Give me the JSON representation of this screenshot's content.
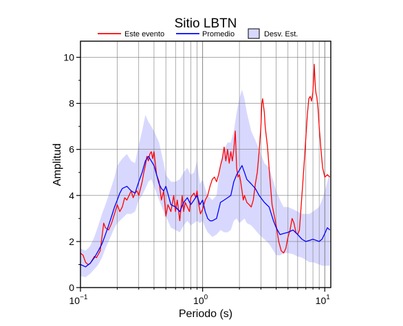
{
  "chart_data": {
    "type": "line",
    "title": "Sitio LBTN",
    "xlabel": "Periodo (s)",
    "ylabel": "Amplitud",
    "x_scale": "log",
    "xlim": [
      0.1,
      11.2
    ],
    "ylim": [
      0,
      10.7
    ],
    "grid": true,
    "legend_placement": "top",
    "x_ticks": [
      {
        "value": 0.1,
        "base": "10",
        "exp": "−1"
      },
      {
        "value": 1,
        "base": "10",
        "exp": "0"
      },
      {
        "value": 10,
        "base": "10",
        "exp": "1"
      }
    ],
    "y_ticks": [
      {
        "value": 0,
        "label": "0"
      },
      {
        "value": 2,
        "label": "2"
      },
      {
        "value": 4,
        "label": "4"
      },
      {
        "value": 6,
        "label": "6"
      },
      {
        "value": 8,
        "label": "8"
      },
      {
        "value": 10,
        "label": "10"
      }
    ],
    "legend": [
      {
        "label": "Este evento",
        "kind": "line",
        "color": "#ff0000"
      },
      {
        "label": "Promedio",
        "kind": "line",
        "color": "#0000ff"
      },
      {
        "label": "Desv. Est.",
        "kind": "box",
        "color": "#d8d8ff"
      }
    ],
    "series": [
      {
        "name": "Este evento",
        "color": "#ff0000",
        "x": [
          0.1,
          0.105,
          0.11,
          0.115,
          0.12,
          0.125,
          0.13,
          0.135,
          0.14,
          0.145,
          0.15,
          0.155,
          0.16,
          0.17,
          0.18,
          0.19,
          0.2,
          0.21,
          0.22,
          0.23,
          0.24,
          0.25,
          0.26,
          0.27,
          0.28,
          0.29,
          0.3,
          0.31,
          0.32,
          0.33,
          0.34,
          0.35,
          0.36,
          0.37,
          0.38,
          0.39,
          0.4,
          0.42,
          0.44,
          0.46,
          0.48,
          0.5,
          0.52,
          0.55,
          0.58,
          0.6,
          0.62,
          0.65,
          0.68,
          0.7,
          0.72,
          0.75,
          0.78,
          0.8,
          0.82,
          0.85,
          0.88,
          0.9,
          0.93,
          0.96,
          1.0,
          1.05,
          1.1,
          1.15,
          1.2,
          1.25,
          1.3,
          1.35,
          1.4,
          1.45,
          1.5,
          1.55,
          1.6,
          1.65,
          1.7,
          1.75,
          1.8,
          1.85,
          1.9,
          1.95,
          2.0,
          2.05,
          2.1,
          2.15,
          2.2,
          2.3,
          2.4,
          2.5,
          2.6,
          2.7,
          2.8,
          2.9,
          3.0,
          3.05,
          3.1,
          3.15,
          3.2,
          3.25,
          3.3,
          3.4,
          3.5,
          3.6,
          3.7,
          3.8,
          3.9,
          4.0,
          4.2,
          4.4,
          4.6,
          4.8,
          5.0,
          5.2,
          5.4,
          5.6,
          5.8,
          6.0,
          6.2,
          6.4,
          6.6,
          6.8,
          7.0,
          7.2,
          7.4,
          7.6,
          7.8,
          8.0,
          8.1,
          8.2,
          8.3,
          8.4,
          8.5,
          8.6,
          8.8,
          9.0,
          9.3,
          9.6,
          10.0,
          10.5,
          11.0
        ],
        "y": [
          1.5,
          1.4,
          1.1,
          1.0,
          1.05,
          1.2,
          1.35,
          1.3,
          1.45,
          1.6,
          2.2,
          2.8,
          2.6,
          2.5,
          2.8,
          3.2,
          3.6,
          3.3,
          3.5,
          3.9,
          3.8,
          4.0,
          4.2,
          3.9,
          4.1,
          4.2,
          4.0,
          4.3,
          4.6,
          5.0,
          5.3,
          5.7,
          5.5,
          5.8,
          5.9,
          5.6,
          5.9,
          4.9,
          4.6,
          3.8,
          4.2,
          3.1,
          3.6,
          3.3,
          4.0,
          3.3,
          3.8,
          2.9,
          4.0,
          3.3,
          3.7,
          3.5,
          3.3,
          3.9,
          4.0,
          4.1,
          3.9,
          4.2,
          3.6,
          3.2,
          3.4,
          3.8,
          4.0,
          4.4,
          4.7,
          4.8,
          4.6,
          4.9,
          5.3,
          5.6,
          6.1,
          5.5,
          6.0,
          5.4,
          5.9,
          5.5,
          6.0,
          6.8,
          5.2,
          4.8,
          4.9,
          4.6,
          4.2,
          3.8,
          4.0,
          3.7,
          3.6,
          3.5,
          3.8,
          4.5,
          5.0,
          5.9,
          7.0,
          8.0,
          8.2,
          7.9,
          7.6,
          7.0,
          6.7,
          6.1,
          5.2,
          4.4,
          3.6,
          3.3,
          3.0,
          2.7,
          2.0,
          1.6,
          1.5,
          1.7,
          2.2,
          2.5,
          3.0,
          2.8,
          2.4,
          2.3,
          2.5,
          3.5,
          4.5,
          5.5,
          6.5,
          7.5,
          8.2,
          8.3,
          8.1,
          8.5,
          9.0,
          9.7,
          9.1,
          8.6,
          8.4,
          8.3,
          7.8,
          7.0,
          6.0,
          5.2,
          4.8,
          4.9,
          4.8
        ]
      },
      {
        "name": "Promedio",
        "color": "#0000ff",
        "x": [
          0.1,
          0.11,
          0.12,
          0.13,
          0.14,
          0.15,
          0.16,
          0.17,
          0.18,
          0.19,
          0.2,
          0.21,
          0.22,
          0.24,
          0.26,
          0.28,
          0.3,
          0.32,
          0.34,
          0.36,
          0.38,
          0.4,
          0.42,
          0.44,
          0.46,
          0.48,
          0.5,
          0.55,
          0.6,
          0.65,
          0.7,
          0.75,
          0.8,
          0.85,
          0.9,
          0.95,
          1.0,
          1.05,
          1.1,
          1.15,
          1.2,
          1.3,
          1.4,
          1.5,
          1.6,
          1.7,
          1.8,
          1.9,
          2.0,
          2.1,
          2.2,
          2.3,
          2.5,
          2.7,
          2.9,
          3.2,
          3.5,
          3.8,
          4.0,
          4.3,
          4.6,
          5.0,
          5.5,
          6.0,
          6.5,
          7.0,
          7.5,
          8.0,
          8.5,
          9.0,
          9.5,
          10.0,
          10.5,
          11.0
        ],
        "y": [
          1.0,
          0.9,
          1.05,
          1.3,
          1.6,
          1.9,
          2.3,
          2.7,
          3.1,
          3.5,
          3.8,
          4.1,
          4.3,
          4.4,
          4.2,
          4.1,
          4.6,
          5.0,
          5.5,
          5.7,
          5.5,
          5.3,
          4.9,
          4.5,
          4.3,
          4.2,
          4.4,
          3.6,
          3.5,
          3.3,
          3.7,
          3.9,
          3.6,
          3.8,
          4.0,
          3.6,
          3.8,
          3.3,
          3.0,
          2.9,
          2.9,
          3.0,
          3.7,
          3.8,
          3.9,
          4.0,
          4.6,
          4.9,
          5.1,
          5.3,
          5.0,
          4.7,
          4.5,
          4.3,
          4.0,
          3.7,
          3.5,
          2.9,
          2.6,
          2.3,
          2.35,
          2.4,
          2.5,
          2.3,
          2.1,
          2.0,
          2.05,
          2.1,
          2.05,
          2.0,
          2.1,
          2.35,
          2.6,
          2.5
        ]
      }
    ],
    "band": {
      "name": "Desv. Est.",
      "color": "#d8d8ff",
      "x": [
        0.1,
        0.11,
        0.12,
        0.13,
        0.14,
        0.15,
        0.16,
        0.17,
        0.18,
        0.19,
        0.2,
        0.22,
        0.24,
        0.26,
        0.28,
        0.3,
        0.32,
        0.34,
        0.36,
        0.38,
        0.4,
        0.44,
        0.48,
        0.5,
        0.55,
        0.6,
        0.65,
        0.7,
        0.75,
        0.8,
        0.85,
        0.9,
        0.95,
        1.0,
        1.05,
        1.1,
        1.15,
        1.2,
        1.3,
        1.4,
        1.5,
        1.6,
        1.7,
        1.8,
        1.9,
        2.0,
        2.1,
        2.2,
        2.3,
        2.5,
        2.7,
        2.9,
        3.2,
        3.5,
        3.8,
        4.0,
        4.3,
        4.6,
        5.0,
        5.5,
        6.0,
        6.5,
        7.0,
        7.5,
        8.0,
        8.5,
        9.0,
        9.5,
        10.0,
        10.5,
        11.0
      ],
      "upper": [
        1.7,
        1.6,
        1.8,
        2.2,
        2.7,
        3.2,
        3.6,
        4.0,
        4.4,
        4.8,
        5.3,
        5.6,
        5.8,
        5.5,
        5.4,
        6.2,
        6.8,
        7.5,
        7.2,
        7.0,
        6.8,
        6.3,
        5.4,
        4.9,
        4.6,
        4.6,
        4.7,
        5.0,
        5.2,
        4.9,
        5.0,
        5.5,
        4.5,
        4.7,
        4.3,
        4.0,
        3.9,
        3.8,
        4.0,
        5.4,
        6.0,
        6.3,
        6.3,
        6.8,
        7.6,
        8.2,
        8.6,
        8.2,
        7.6,
        6.8,
        6.4,
        6.0,
        5.4,
        5.2,
        4.6,
        4.2,
        3.8,
        3.5,
        3.5,
        3.4,
        3.3,
        3.2,
        3.2,
        3.2,
        3.3,
        3.4,
        3.5,
        3.8,
        4.2,
        4.6,
        5.0
      ],
      "lower": [
        0.5,
        0.45,
        0.6,
        0.8,
        1.0,
        1.3,
        1.7,
        2.0,
        2.3,
        2.6,
        2.8,
        3.0,
        3.2,
        3.2,
        3.3,
        3.8,
        4.0,
        4.3,
        4.6,
        4.7,
        4.4,
        3.8,
        3.3,
        3.1,
        2.6,
        2.5,
        2.4,
        2.7,
        2.9,
        2.7,
        2.8,
        2.9,
        2.8,
        2.9,
        2.6,
        2.4,
        2.3,
        2.2,
        2.3,
        2.5,
        2.4,
        2.4,
        2.5,
        2.9,
        3.0,
        2.8,
        2.9,
        3.0,
        2.8,
        2.7,
        2.5,
        2.3,
        2.1,
        1.9,
        1.6,
        1.4,
        1.4,
        1.5,
        1.5,
        1.45,
        1.35,
        1.3,
        1.2,
        1.1,
        1.1,
        1.05,
        1.0,
        0.95,
        0.95,
        0.95,
        0.95
      ]
    }
  }
}
